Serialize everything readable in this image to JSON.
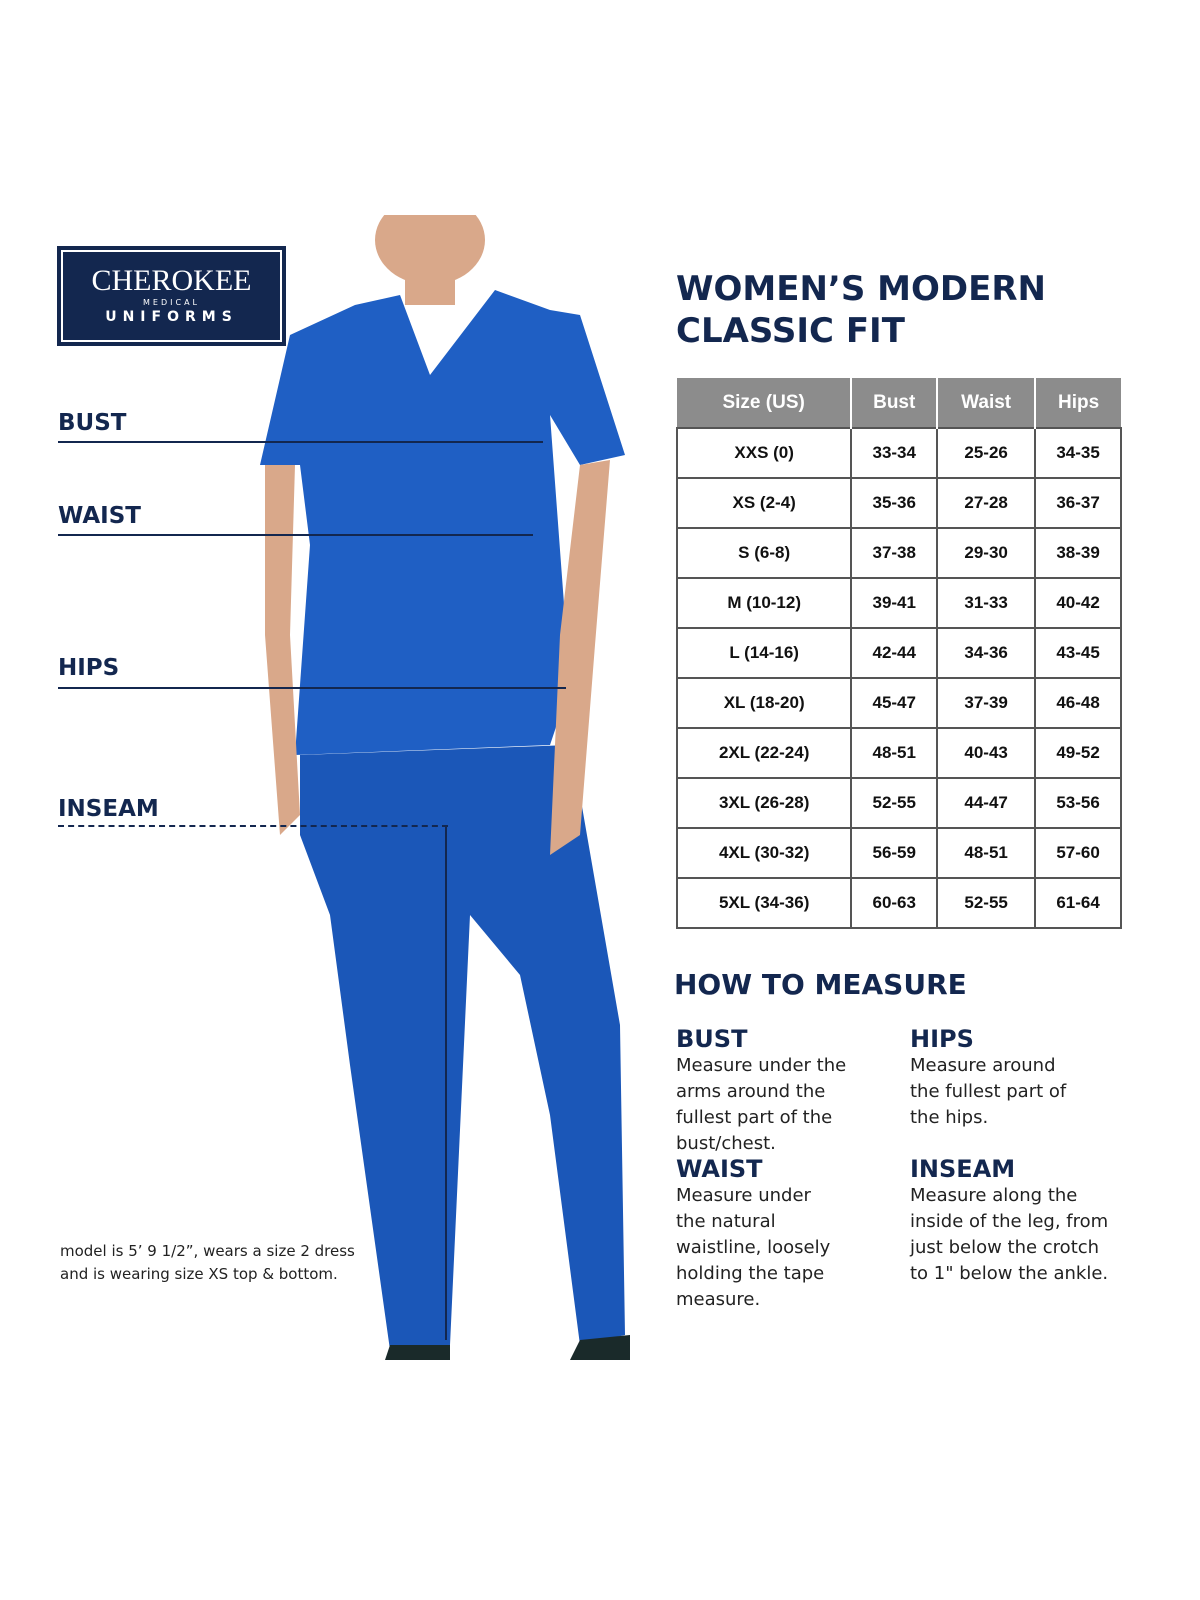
{
  "logo": {
    "brand": "CHEROKEE",
    "sub": "MEDICAL",
    "line": "UNIFORMS"
  },
  "measure_labels": {
    "bust": "BUST",
    "waist": "WAIST",
    "hips": "HIPS",
    "inseam": "INSEAM"
  },
  "title": {
    "line1": "WOMEN’S MODERN",
    "line2": "CLASSIC FIT"
  },
  "colors": {
    "navy": "#13274f",
    "header_gray": "#8c8c8c",
    "scrub_blue": "#1f5fc4"
  },
  "table": {
    "headers": [
      "Size (US)",
      "Bust",
      "Waist",
      "Hips"
    ],
    "rows": [
      [
        "XXS (0)",
        "33-34",
        "25-26",
        "34-35"
      ],
      [
        "XS (2-4)",
        "35-36",
        "27-28",
        "36-37"
      ],
      [
        "S (6-8)",
        "37-38",
        "29-30",
        "38-39"
      ],
      [
        "M (10-12)",
        "39-41",
        "31-33",
        "40-42"
      ],
      [
        "L (14-16)",
        "42-44",
        "34-36",
        "43-45"
      ],
      [
        "XL (18-20)",
        "45-47",
        "37-39",
        "46-48"
      ],
      [
        "2XL (22-24)",
        "48-51",
        "40-43",
        "49-52"
      ],
      [
        "3XL (26-28)",
        "52-55",
        "44-47",
        "53-56"
      ],
      [
        "4XL (30-32)",
        "56-59",
        "48-51",
        "57-60"
      ],
      [
        "5XL (34-36)",
        "60-63",
        "52-55",
        "61-64"
      ]
    ]
  },
  "how_to": {
    "title": "HOW TO MEASURE",
    "bust": {
      "h": "BUST",
      "t": "Measure under the arms around the fullest part of the bust/chest."
    },
    "hips": {
      "h": "HIPS",
      "t": "Measure around the fullest part of the hips."
    },
    "waist": {
      "h": "WAIST",
      "t": "Measure under the natural waistline, loosely holding the tape measure."
    },
    "inseam": {
      "h": "INSEAM",
      "t": "Measure along the inside of the leg, from just below the crotch to 1\" below the ankle."
    }
  },
  "note": {
    "line1": "model is 5’ 9 1/2”, wears a size 2 dress",
    "line2": "and is wearing size XS top & bottom."
  }
}
